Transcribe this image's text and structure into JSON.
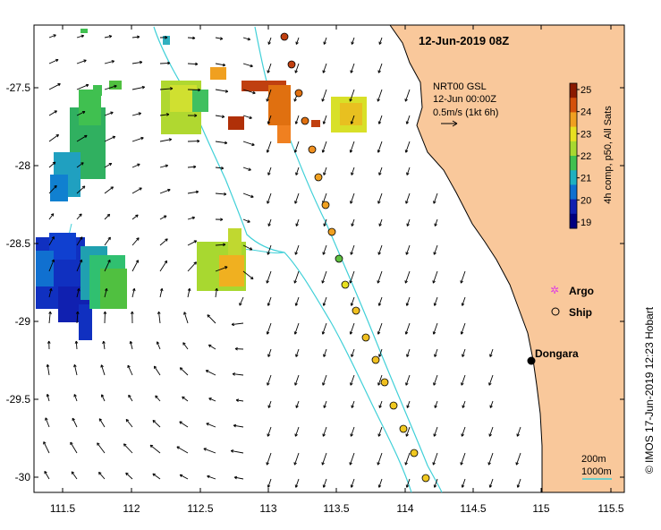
{
  "title": "12-Jun-2019 08Z",
  "annotation": {
    "line1": "NRT00 GSL",
    "line2": "12-Jun 00:00Z",
    "line3": "0.5m/s (1kt 6h)"
  },
  "x_ticks": [
    "111.5",
    "112",
    "112.5",
    "113",
    "113.5",
    "114",
    "114.5",
    "115",
    "115.5"
  ],
  "y_ticks": [
    "-27.5",
    "-28",
    "-28.5",
    "-29",
    "-29.5",
    "-30"
  ],
  "colorbar": {
    "ticks": [
      "25",
      "24",
      "23",
      "22",
      "21",
      "20",
      "19"
    ],
    "label": "4h comp, p50, All Sats",
    "colors": [
      "#8b1a00",
      "#d4500a",
      "#f0a020",
      "#e8e020",
      "#a8d830",
      "#40c050",
      "#20b0c0",
      "#1070d0",
      "#1020b0",
      "#000080"
    ]
  },
  "legend": {
    "argo": "Argo",
    "ship": "Ship"
  },
  "place": {
    "name": "Dongara"
  },
  "scale": {
    "label1": "200m",
    "label2": "1000m"
  },
  "credit": "© IMOS 17-Jun-2019 12:23 Hobart",
  "colors": {
    "land": "#f9c89b",
    "isobath": "#40d0d8",
    "coast": "#000000"
  }
}
